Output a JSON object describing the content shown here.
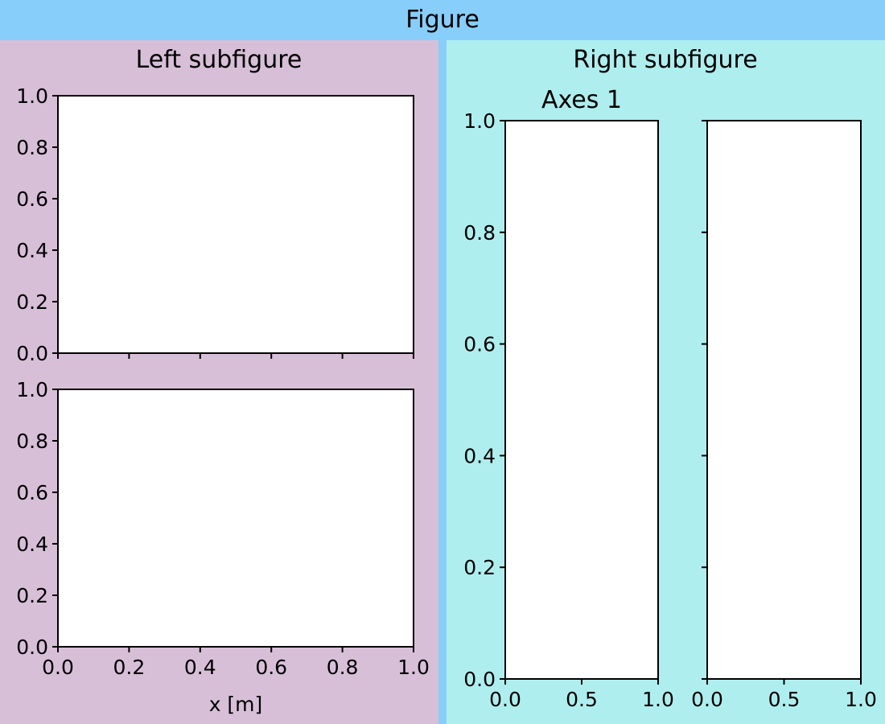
{
  "figure": {
    "title": "Figure",
    "background": "#87CEFA"
  },
  "subfigures": {
    "left": {
      "title": "Left subfigure",
      "background": "#D8BFD8"
    },
    "right": {
      "title": "Right subfigure",
      "background": "#AFEEEE"
    }
  },
  "chart_data": [
    {
      "type": "line",
      "panel": "left-top",
      "series": [],
      "title": "",
      "xlabel": "",
      "ylabel": "",
      "xlim": [
        0,
        1
      ],
      "ylim": [
        0,
        1
      ],
      "xticks": [
        "0.0",
        "0.2",
        "0.4",
        "0.6",
        "0.8",
        "1.0"
      ],
      "xticklabels_visible": false,
      "yticks": [
        "0.0",
        "0.2",
        "0.4",
        "0.6",
        "0.8",
        "1.0"
      ],
      "yticklabels_visible": true
    },
    {
      "type": "line",
      "panel": "left-bottom",
      "series": [],
      "title": "",
      "xlabel": "x [m]",
      "ylabel": "",
      "xlim": [
        0,
        1
      ],
      "ylim": [
        0,
        1
      ],
      "xticks": [
        "0.0",
        "0.2",
        "0.4",
        "0.6",
        "0.8",
        "1.0"
      ],
      "xticklabels_visible": true,
      "yticks": [
        "0.0",
        "0.2",
        "0.4",
        "0.6",
        "0.8",
        "1.0"
      ],
      "yticklabels_visible": true
    },
    {
      "type": "line",
      "panel": "right-1",
      "series": [],
      "title": "Axes 1",
      "xlabel": "",
      "ylabel": "",
      "xlim": [
        0,
        1
      ],
      "ylim": [
        0,
        1
      ],
      "xticks": [
        "0.0",
        "0.5",
        "1.0"
      ],
      "xticklabels_visible": true,
      "yticks": [
        "0.0",
        "0.2",
        "0.4",
        "0.6",
        "0.8",
        "1.0"
      ],
      "yticklabels_visible": true
    },
    {
      "type": "line",
      "panel": "right-2",
      "series": [],
      "title": "",
      "xlabel": "",
      "ylabel": "",
      "xlim": [
        0,
        1
      ],
      "ylim": [
        0,
        1
      ],
      "xticks": [
        "0.0",
        "0.5",
        "1.0"
      ],
      "xticklabels_visible": true,
      "yticks": [
        "0.0",
        "0.2",
        "0.4",
        "0.6",
        "0.8",
        "1.0"
      ],
      "yticklabels_visible": false
    }
  ]
}
